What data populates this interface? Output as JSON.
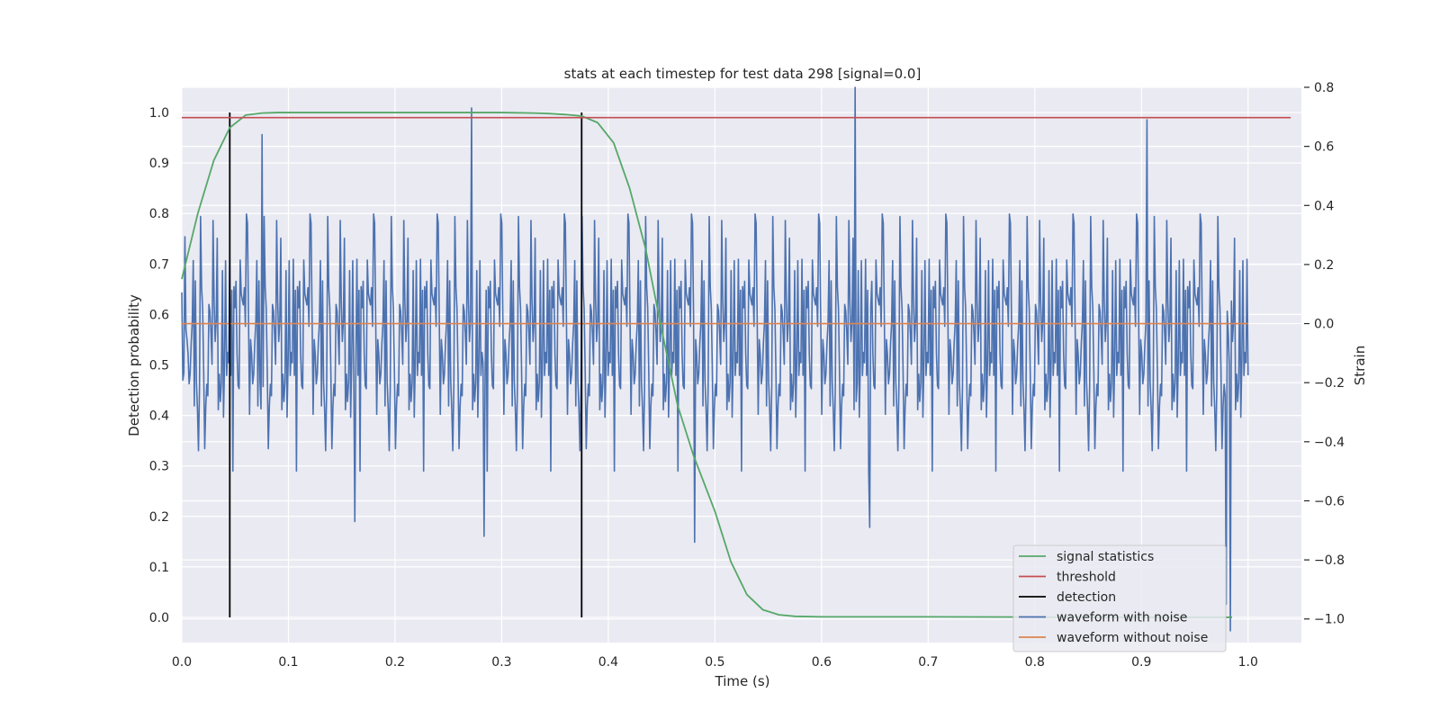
{
  "chart_data": {
    "type": "line",
    "title": "stats at each timestep for test data 298 [signal=0.0]",
    "xlabel": "Time (s)",
    "ylabel_left": "Detection probability",
    "ylabel_right": "Strain",
    "xlim": [
      0.0,
      1.05
    ],
    "ylim_left": [
      -0.05,
      1.05
    ],
    "ylim_right": [
      -1.08,
      0.8
    ],
    "x_ticks": [
      0.0,
      0.1,
      0.2,
      0.3,
      0.4,
      0.5,
      0.6,
      0.7,
      0.8,
      0.9,
      1.0
    ],
    "x_tick_labels": [
      "0.0",
      "0.1",
      "0.2",
      "0.3",
      "0.4",
      "0.5",
      "0.6",
      "0.7",
      "0.8",
      "0.9",
      "1.0"
    ],
    "y_left_ticks": [
      0.0,
      0.1,
      0.2,
      0.3,
      0.4,
      0.5,
      0.6,
      0.7,
      0.8,
      0.9,
      1.0
    ],
    "y_left_tick_labels": [
      "0.0",
      "0.1",
      "0.2",
      "0.3",
      "0.4",
      "0.5",
      "0.6",
      "0.7",
      "0.8",
      "0.9",
      "1.0"
    ],
    "y_right_ticks": [
      -1.0,
      -0.8,
      -0.6,
      -0.4,
      -0.2,
      0.0,
      0.2,
      0.4,
      0.6,
      0.8
    ],
    "y_right_tick_labels": [
      "−1.0",
      "−0.8",
      "−0.6",
      "−0.4",
      "−0.2",
      "0.0",
      "0.2",
      "0.4",
      "0.6",
      "0.8"
    ],
    "grid": true,
    "legend_position": "lower-right",
    "series": [
      {
        "name": "signal statistics",
        "axis": "left",
        "color": "#55a868",
        "x": [
          0.0,
          0.015,
          0.03,
          0.045,
          0.06,
          0.075,
          0.09,
          0.105,
          0.12,
          0.15,
          0.2,
          0.25,
          0.3,
          0.33,
          0.345,
          0.36,
          0.375,
          0.39,
          0.405,
          0.42,
          0.435,
          0.45,
          0.465,
          0.48,
          0.5,
          0.515,
          0.53,
          0.545,
          0.56,
          0.575,
          0.6,
          0.7,
          0.8,
          0.9,
          0.985
        ],
        "y": [
          0.67,
          0.8,
          0.905,
          0.97,
          0.995,
          0.999,
          1.0,
          1.0,
          1.0,
          1.0,
          1.0,
          1.0,
          1.0,
          0.999,
          0.998,
          0.996,
          0.993,
          0.98,
          0.94,
          0.85,
          0.73,
          0.57,
          0.42,
          0.32,
          0.21,
          0.11,
          0.045,
          0.015,
          0.005,
          0.002,
          0.001,
          0.001,
          0.0005,
          0.0,
          0.0
        ]
      },
      {
        "name": "threshold",
        "axis": "left",
        "color": "#c44e52",
        "x": [
          0.0,
          1.04
        ],
        "y": [
          0.99,
          0.99
        ]
      },
      {
        "name": "detection",
        "axis": "left",
        "color": "#000000",
        "segments": [
          {
            "x": 0.045,
            "y": [
              0.0,
              1.0
            ]
          },
          {
            "x": 0.375,
            "y": [
              0.0,
              1.0
            ]
          }
        ]
      },
      {
        "name": "waveform with noise",
        "axis": "right",
        "color": "#4c72b0",
        "x_range": [
          0.0,
          1.0
        ],
        "n_samples": 1024,
        "noise_std": 0.21,
        "highlight_points": [
          {
            "x": 0.272,
            "y": 0.73
          },
          {
            "x": 0.283,
            "y": -0.72
          },
          {
            "x": 0.162,
            "y": -0.67
          },
          {
            "x": 0.481,
            "y": -0.74
          },
          {
            "x": 0.631,
            "y": 0.8
          },
          {
            "x": 0.645,
            "y": -0.69
          },
          {
            "x": 0.075,
            "y": 0.64
          },
          {
            "x": 0.905,
            "y": 0.69
          },
          {
            "x": 0.979,
            "y": -0.95
          },
          {
            "x": 0.983,
            "y": -1.04
          }
        ]
      },
      {
        "name": "waveform without noise",
        "axis": "right",
        "color": "#dd8452",
        "x": [
          0.0,
          1.0
        ],
        "y": [
          0.0,
          0.0
        ]
      }
    ]
  }
}
